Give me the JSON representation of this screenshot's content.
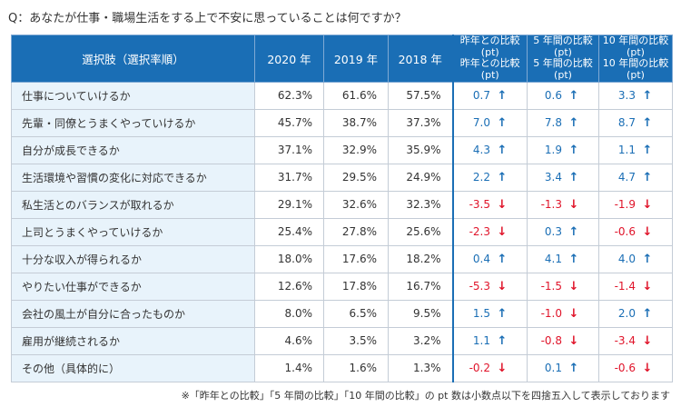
{
  "question": "Q：あなたが仕事・職場生活をする上で不安に思っていることは何ですか？",
  "footnote": "※「昨年との比較」「5 年間の比較」「10 年間の比較」の pt 数は小数点以下を四捨五入して表示しております",
  "colors": {
    "header": "#1a6eb5",
    "item_bg": "#e8f3fb",
    "positive": "#1a6eb5",
    "negative": "#e0142a"
  },
  "chart_data": {
    "type": "table",
    "columns": [
      "選択肢（選択率順）",
      "2020 年",
      "2019 年",
      "2018 年",
      "昨年との比較\n(pt)",
      "5 年間の比較\n(pt)",
      "10 年間の比較\n(pt)"
    ],
    "rows": [
      {
        "item": "仕事についていけるか",
        "values": [
          "62.3%",
          "61.6%",
          "57.5%"
        ],
        "diffs": [
          0.7,
          0.6,
          3.3
        ]
      },
      {
        "item": "先輩・同僚とうまくやっていけるか",
        "values": [
          "45.7%",
          "38.7%",
          "37.3%"
        ],
        "diffs": [
          7.0,
          7.8,
          8.7
        ]
      },
      {
        "item": "自分が成長できるか",
        "values": [
          "37.1%",
          "32.9%",
          "35.9%"
        ],
        "diffs": [
          4.3,
          1.9,
          1.1
        ]
      },
      {
        "item": "生活環境や習慣の変化に対応できるか",
        "values": [
          "31.7%",
          "29.5%",
          "24.9%"
        ],
        "diffs": [
          2.2,
          3.4,
          4.7
        ]
      },
      {
        "item": "私生活とのバランスが取れるか",
        "values": [
          "29.1%",
          "32.6%",
          "32.3%"
        ],
        "diffs": [
          -3.5,
          -1.3,
          -1.9
        ]
      },
      {
        "item": "上司とうまくやっていけるか",
        "values": [
          "25.4%",
          "27.8%",
          "25.6%"
        ],
        "diffs": [
          -2.3,
          0.3,
          -0.6
        ]
      },
      {
        "item": "十分な収入が得られるか",
        "values": [
          "18.0%",
          "17.6%",
          "18.2%"
        ],
        "diffs": [
          0.4,
          4.1,
          4.0
        ]
      },
      {
        "item": "やりたい仕事ができるか",
        "values": [
          "12.6%",
          "17.8%",
          "16.7%"
        ],
        "diffs": [
          -5.3,
          -1.5,
          -1.4
        ]
      },
      {
        "item": "会社の風土が自分に合ったものか",
        "values": [
          "8.0%",
          "6.5%",
          "9.5%"
        ],
        "diffs": [
          1.5,
          -1.0,
          2.0
        ]
      },
      {
        "item": "雇用が継続されるか",
        "values": [
          "4.6%",
          "3.5%",
          "3.2%"
        ],
        "diffs": [
          1.1,
          -0.8,
          -3.4
        ]
      },
      {
        "item": "その他（具体的に）",
        "values": [
          "1.4%",
          "1.6%",
          "1.3%"
        ],
        "diffs": [
          -0.2,
          0.1,
          -0.6
        ]
      }
    ]
  }
}
